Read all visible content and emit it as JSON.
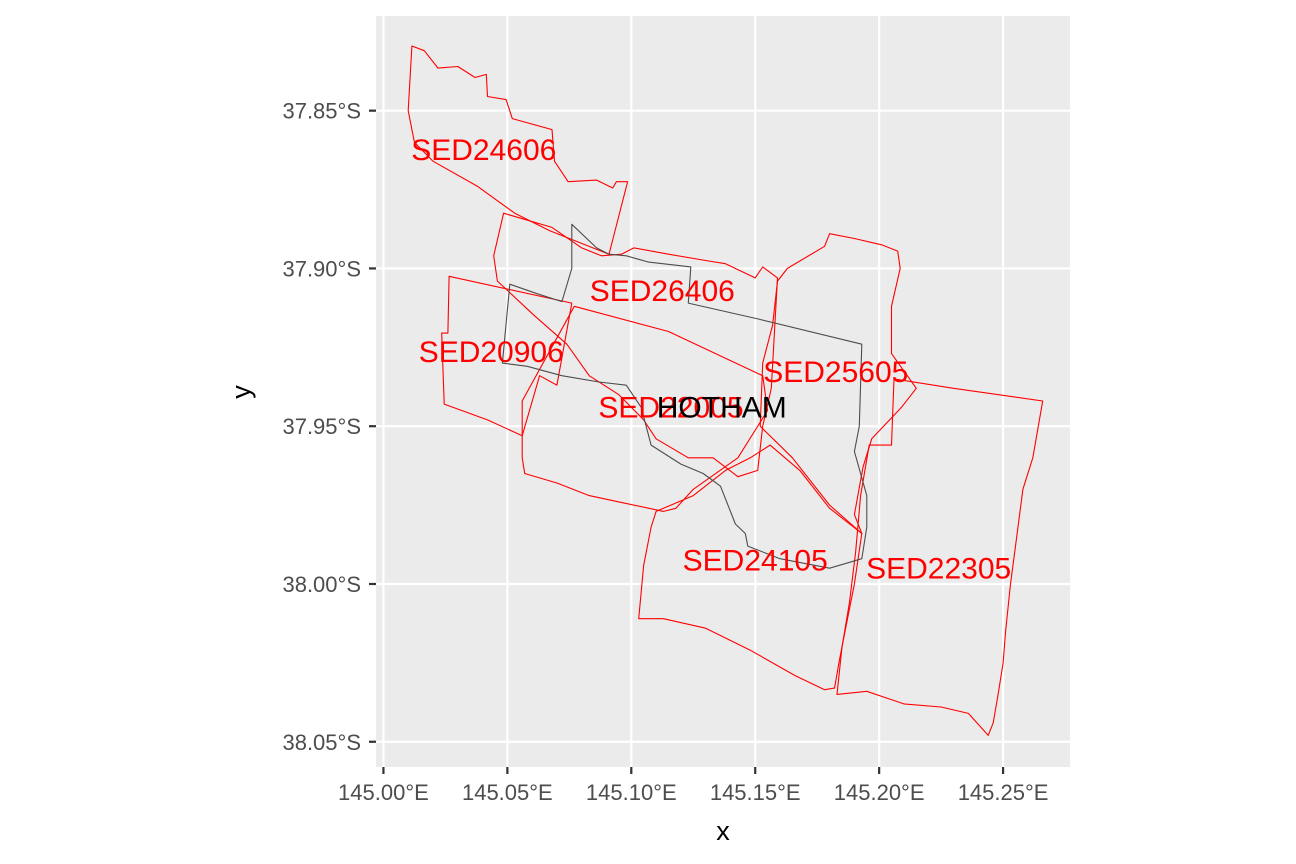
{
  "chart_data": {
    "type": "map",
    "xlabel": "x",
    "ylabel": "y",
    "xlim": [
      144.997,
      145.277
    ],
    "ylim": [
      -38.058,
      -37.82
    ],
    "x_ticks": [
      {
        "value": 145.0,
        "label": "145.00°E"
      },
      {
        "value": 145.05,
        "label": "145.05°E"
      },
      {
        "value": 145.1,
        "label": "145.10°E"
      },
      {
        "value": 145.15,
        "label": "145.15°E"
      },
      {
        "value": 145.2,
        "label": "145.20°E"
      },
      {
        "value": 145.25,
        "label": "145.25°E"
      }
    ],
    "y_ticks": [
      {
        "value": -37.85,
        "label": "37.85°S"
      },
      {
        "value": -37.9,
        "label": "37.90°S"
      },
      {
        "value": -37.95,
        "label": "37.95°S"
      },
      {
        "value": -38.0,
        "label": "38.00°S"
      },
      {
        "value": -38.05,
        "label": "38.05°S"
      }
    ],
    "grid": true,
    "colors": {
      "panel": "#ebebeb",
      "grid": "#ffffff",
      "sed": "#ff0000",
      "focus": "#4d4d4d",
      "focus_label": "#000000"
    },
    "regions": [
      {
        "name": "SED24606",
        "label_at": [
          145.0405,
          -37.8622
        ],
        "boundary": [
          [
            145.0115,
            -37.8295
          ],
          [
            145.0165,
            -37.831
          ],
          [
            145.022,
            -37.8365
          ],
          [
            145.03,
            -37.836
          ],
          [
            145.037,
            -37.8395
          ],
          [
            145.0415,
            -37.8385
          ],
          [
            145.042,
            -37.8455
          ],
          [
            145.0495,
            -37.8465
          ],
          [
            145.052,
            -37.8525
          ],
          [
            145.068,
            -37.856
          ],
          [
            145.069,
            -37.866
          ],
          [
            145.0745,
            -37.8725
          ],
          [
            145.086,
            -37.872
          ],
          [
            145.0925,
            -37.8745
          ],
          [
            145.094,
            -37.8725
          ],
          [
            145.0985,
            -37.8725
          ],
          [
            145.091,
            -37.8955
          ],
          [
            145.067,
            -37.888
          ],
          [
            145.053,
            -37.8825
          ],
          [
            145.038,
            -37.874
          ],
          [
            145.02,
            -37.866
          ],
          [
            145.0125,
            -37.86
          ],
          [
            145.01,
            -37.85
          ]
        ]
      },
      {
        "name": "SED26406",
        "label_at": [
          145.1125,
          -37.9068
        ],
        "boundary": [
          [
            145.0485,
            -37.8825
          ],
          [
            145.068,
            -37.887
          ],
          [
            145.08,
            -37.8935
          ],
          [
            145.088,
            -37.896
          ],
          [
            145.096,
            -37.8955
          ],
          [
            145.101,
            -37.8935
          ],
          [
            145.115,
            -37.8955
          ],
          [
            145.13,
            -37.8975
          ],
          [
            145.138,
            -37.8985
          ],
          [
            145.15,
            -37.903
          ],
          [
            145.153,
            -37.8995
          ],
          [
            145.159,
            -37.903
          ],
          [
            145.1565,
            -37.938
          ],
          [
            145.153,
            -37.95
          ],
          [
            145.151,
            -37.964
          ],
          [
            145.143,
            -37.966
          ],
          [
            145.133,
            -37.96
          ],
          [
            145.123,
            -37.96
          ],
          [
            145.11,
            -37.954
          ],
          [
            145.105,
            -37.948
          ],
          [
            145.095,
            -37.94
          ],
          [
            145.083,
            -37.934
          ],
          [
            145.074,
            -37.924
          ],
          [
            145.061,
            -37.915
          ],
          [
            145.046,
            -37.904
          ],
          [
            145.0445,
            -37.896
          ]
        ]
      },
      {
        "name": "SED20906",
        "label_at": [
          145.0435,
          -37.9262
        ],
        "boundary": [
          [
            145.0265,
            -37.9025
          ],
          [
            145.076,
            -37.911
          ],
          [
            145.07,
            -37.937
          ],
          [
            145.063,
            -37.934
          ],
          [
            145.056,
            -37.953
          ],
          [
            145.042,
            -37.948
          ],
          [
            145.0245,
            -37.943
          ],
          [
            145.0235,
            -37.9205
          ],
          [
            145.026,
            -37.9205
          ]
        ]
      },
      {
        "name": "SED22005",
        "label_at": [
          145.116,
          -37.9438
        ],
        "boundary": [
          [
            145.056,
            -37.942
          ],
          [
            145.077,
            -37.912
          ],
          [
            145.115,
            -37.92
          ],
          [
            145.153,
            -37.934
          ],
          [
            145.155,
            -37.945
          ],
          [
            145.143,
            -37.96
          ],
          [
            145.125,
            -37.97
          ],
          [
            145.118,
            -37.976
          ],
          [
            145.113,
            -37.977
          ],
          [
            145.095,
            -37.974
          ],
          [
            145.083,
            -37.972
          ],
          [
            145.07,
            -37.968
          ],
          [
            145.057,
            -37.965
          ],
          [
            145.056,
            -37.96
          ]
        ]
      },
      {
        "name": "SED25605",
        "label_at": [
          145.1825,
          -37.9325
        ],
        "boundary": [
          [
            145.159,
            -37.904
          ],
          [
            145.163,
            -37.9
          ],
          [
            145.178,
            -37.893
          ],
          [
            145.18,
            -37.889
          ],
          [
            145.19,
            -37.8905
          ],
          [
            145.201,
            -37.8925
          ],
          [
            145.2075,
            -37.8945
          ],
          [
            145.2085,
            -37.9
          ],
          [
            145.205,
            -37.912
          ],
          [
            145.205,
            -37.927
          ],
          [
            145.215,
            -37.938
          ],
          [
            145.209,
            -37.944
          ],
          [
            145.197,
            -37.954
          ],
          [
            145.1935,
            -37.963
          ],
          [
            145.19,
            -37.978
          ],
          [
            145.193,
            -37.984
          ],
          [
            145.18,
            -37.975
          ],
          [
            145.165,
            -37.96
          ],
          [
            145.152,
            -37.95
          ],
          [
            145.153,
            -37.93
          ],
          [
            145.157,
            -37.918
          ]
        ]
      },
      {
        "name": "SED24105",
        "label_at": [
          145.15,
          -37.9922
        ],
        "boundary": [
          [
            145.11,
            -37.977
          ],
          [
            145.125,
            -37.972
          ],
          [
            145.138,
            -37.964
          ],
          [
            145.148,
            -37.96
          ],
          [
            145.156,
            -37.956
          ],
          [
            145.168,
            -37.964
          ],
          [
            145.18,
            -37.976
          ],
          [
            145.193,
            -37.984
          ],
          [
            145.19,
            -38.0
          ],
          [
            145.187,
            -38.012
          ],
          [
            145.184,
            -38.024
          ],
          [
            145.182,
            -38.033
          ],
          [
            145.178,
            -38.0335
          ],
          [
            145.166,
            -38.029
          ],
          [
            145.148,
            -38.021
          ],
          [
            145.13,
            -38.014
          ],
          [
            145.113,
            -38.011
          ],
          [
            145.103,
            -38.011
          ],
          [
            145.105,
            -37.994
          ],
          [
            145.108,
            -37.982
          ]
        ]
      },
      {
        "name": "SED22305",
        "label_at": [
          145.224,
          -37.9948
        ],
        "boundary": [
          [
            145.206,
            -37.935
          ],
          [
            145.23,
            -37.938
          ],
          [
            145.266,
            -37.942
          ],
          [
            145.262,
            -37.96
          ],
          [
            145.258,
            -37.97
          ],
          [
            145.255,
            -37.988
          ],
          [
            145.253,
            -38.0
          ],
          [
            145.251,
            -38.015
          ],
          [
            145.25,
            -38.025
          ],
          [
            145.248,
            -38.035
          ],
          [
            145.246,
            -38.044
          ],
          [
            145.244,
            -38.048
          ],
          [
            145.236,
            -38.041
          ],
          [
            145.225,
            -38.039
          ],
          [
            145.21,
            -38.038
          ],
          [
            145.195,
            -38.034
          ],
          [
            145.183,
            -38.035
          ],
          [
            145.185,
            -38.02
          ],
          [
            145.188,
            -38.006
          ],
          [
            145.1905,
            -37.99
          ],
          [
            145.1925,
            -37.972
          ],
          [
            145.196,
            -37.956
          ],
          [
            145.205,
            -37.956
          ]
        ]
      }
    ],
    "focus": {
      "name": "HOTHAM",
      "label_at": [
        145.1365,
        -37.9438
      ],
      "boundary": [
        [
          145.076,
          -37.886
        ],
        [
          145.086,
          -37.8935
        ],
        [
          145.091,
          -37.8955
        ],
        [
          145.098,
          -37.896
        ],
        [
          145.107,
          -37.898
        ],
        [
          145.124,
          -37.8995
        ],
        [
          145.123,
          -37.911
        ],
        [
          145.151,
          -37.916
        ],
        [
          145.193,
          -37.924
        ],
        [
          145.192,
          -37.95
        ],
        [
          145.19,
          -37.958
        ],
        [
          145.195,
          -37.972
        ],
        [
          145.195,
          -37.982
        ],
        [
          145.193,
          -37.992
        ],
        [
          145.18,
          -37.995
        ],
        [
          145.16,
          -37.992
        ],
        [
          145.147,
          -37.988
        ],
        [
          145.146,
          -37.984
        ],
        [
          145.142,
          -37.981
        ],
        [
          145.136,
          -37.969
        ],
        [
          145.129,
          -37.965
        ],
        [
          145.12,
          -37.962
        ],
        [
          145.108,
          -37.956
        ],
        [
          145.104,
          -37.944
        ],
        [
          145.098,
          -37.937
        ],
        [
          145.087,
          -37.936
        ],
        [
          145.072,
          -37.934
        ],
        [
          145.058,
          -37.931
        ],
        [
          145.048,
          -37.93
        ],
        [
          145.051,
          -37.905
        ],
        [
          145.062,
          -37.908
        ],
        [
          145.072,
          -37.9105
        ],
        [
          145.076,
          -37.9
        ]
      ]
    }
  }
}
